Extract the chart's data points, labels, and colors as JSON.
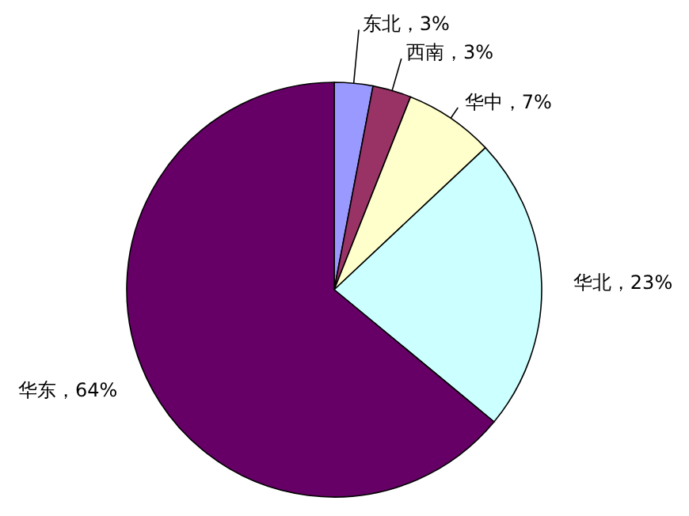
{
  "chart_data": {
    "type": "pie",
    "categories": [
      "东北",
      "西南",
      "华中",
      "华北",
      "华东"
    ],
    "values": [
      3,
      3,
      7,
      23,
      64
    ],
    "colors": [
      "#9999ff",
      "#993366",
      "#ffffcc",
      "#ccffff",
      "#660066"
    ],
    "value_labels": [
      "，3%",
      "，3%",
      "，7%",
      "，23%",
      "，64%"
    ]
  }
}
